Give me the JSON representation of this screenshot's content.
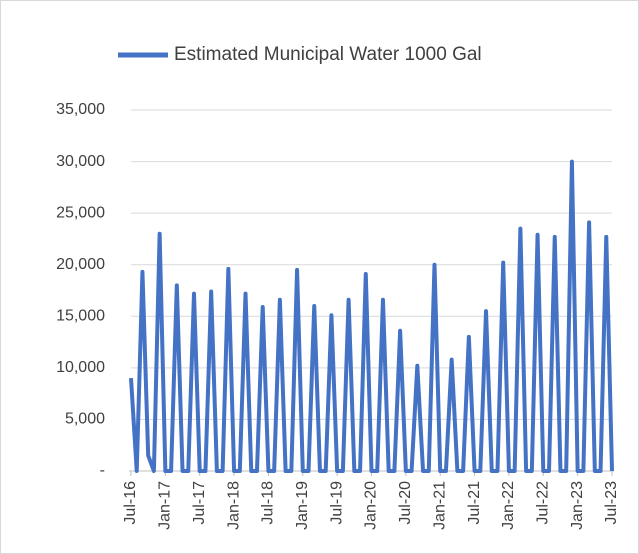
{
  "chart_data": {
    "type": "line",
    "categories": [
      "Jul-16",
      null,
      null,
      null,
      null,
      null,
      "Jan-17",
      null,
      null,
      null,
      null,
      null,
      "Jul-17",
      null,
      null,
      null,
      null,
      null,
      "Jan-18",
      null,
      null,
      null,
      null,
      null,
      "Jul-18",
      null,
      null,
      null,
      null,
      null,
      "Jan-19",
      null,
      null,
      null,
      null,
      null,
      "Jul-19",
      null,
      null,
      null,
      null,
      null,
      "Jan-20",
      null,
      null,
      null,
      null,
      null,
      "Jul-20",
      null,
      null,
      null,
      null,
      null,
      "Jan-21",
      null,
      null,
      null,
      null,
      null,
      "Jul-21",
      null,
      null,
      null,
      null,
      null,
      "Jan-22",
      null,
      null,
      null,
      null,
      null,
      "Jul-22",
      null,
      null,
      null,
      null,
      null,
      "Jan-23",
      null,
      null,
      null,
      null,
      null,
      "Jul-23"
    ],
    "series": [
      {
        "name": "Estimated Municipal Water 1000 Gal",
        "color": "#4472c4",
        "values": [
          9000,
          0,
          19300,
          1500,
          0,
          23000,
          0,
          0,
          18000,
          0,
          0,
          17200,
          0,
          0,
          17400,
          0,
          0,
          19600,
          0,
          0,
          17200,
          0,
          0,
          15900,
          0,
          0,
          16600,
          0,
          0,
          19500,
          0,
          0,
          16000,
          0,
          0,
          15100,
          0,
          0,
          16600,
          0,
          0,
          19100,
          0,
          0,
          16600,
          0,
          0,
          13600,
          0,
          0,
          10200,
          0,
          0,
          20000,
          0,
          0,
          10800,
          0,
          0,
          13000,
          0,
          0,
          15500,
          0,
          0,
          20200,
          0,
          0,
          23500,
          0,
          0,
          22900,
          0,
          0,
          22700,
          0,
          0,
          30000,
          0,
          0,
          24100,
          0,
          0,
          22700,
          0
        ]
      }
    ],
    "ylim": [
      0,
      35000
    ],
    "yticks": [
      {
        "value": 0,
        "label": "-"
      },
      {
        "value": 5000,
        "label": "5,000"
      },
      {
        "value": 10000,
        "label": "10,000"
      },
      {
        "value": 15000,
        "label": "15,000"
      },
      {
        "value": 20000,
        "label": "20,000"
      },
      {
        "value": 25000,
        "label": "25,000"
      },
      {
        "value": 30000,
        "label": "30,000"
      },
      {
        "value": 35000,
        "label": "35,000"
      }
    ],
    "grid": true,
    "legend": "top"
  }
}
